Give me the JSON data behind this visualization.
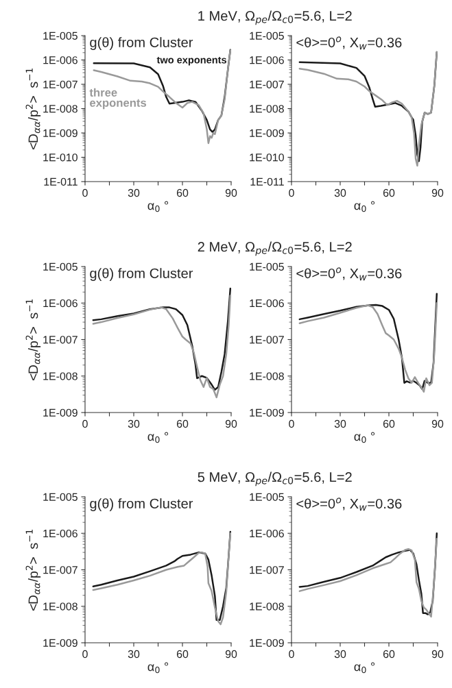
{
  "chart_data": [
    {
      "type": "line",
      "title": "1 MeV, Ω$_{pe}$/Ω$_{c0}$=5.6, L=2",
      "xlabel": "α$_{0}$ °",
      "ylabel": "<D$_{αα}$/p$^{2}$>  s$^{−1}$",
      "annotations": [
        "g(θ) from Cluster"
      ],
      "log": "y",
      "grid": false,
      "legend": false,
      "marker": "none",
      "line_style": "solid",
      "xlim": [
        0,
        90
      ],
      "xticks": [
        0,
        {
          "value": 15,
          "label": null
        },
        30,
        {
          "value": 45,
          "label": null
        },
        60,
        {
          "value": 75,
          "label": null
        },
        90
      ],
      "ylim": [
        1e-11,
        1e-05
      ],
      "yticks": [
        {
          "value": 1e-11,
          "label": "1E-011"
        },
        {
          "value": 1e-10,
          "label": "1E-010"
        },
        {
          "value": 1e-09,
          "label": "1E-009"
        },
        {
          "value": 1e-08,
          "label": "1E-008"
        },
        {
          "value": 1e-07,
          "label": "1E-007"
        },
        {
          "value": 1e-06,
          "label": "1E-006"
        },
        {
          "value": 1e-05,
          "label": "1E-005"
        }
      ],
      "series": [
        {
          "name": "two exponents",
          "color": "#1a1a1a",
          "x": [
            5.4,
            30,
            40,
            45,
            48,
            50,
            52,
            55,
            60,
            64,
            68,
            72,
            75,
            77,
            78.5,
            80,
            82,
            84,
            86,
            88,
            89.5
          ],
          "values": [
            7.4e-07,
            7.2e-07,
            5e-07,
            2.6e-07,
            8.7e-08,
            3e-08,
            1.6e-08,
            1.7e-08,
            1.9e-08,
            2.2e-08,
            1.9e-08,
            8.1e-09,
            3.4e-09,
            1.4e-09,
            1.1e-09,
            1.4e-09,
            3.4e-09,
            5.2e-09,
            3e-08,
            4e-07,
            2.6e-06
          ]
        },
        {
          "name": "three exponents",
          "color": "#999999",
          "x": [
            5.4,
            10,
            20,
            28,
            35,
            40,
            45,
            48,
            52,
            56,
            60,
            63,
            66,
            70,
            73,
            75,
            76,
            77,
            78,
            79,
            80,
            82,
            84,
            86,
            88,
            89.5
          ],
          "values": [
            3.8e-07,
            3.2e-07,
            2.1e-07,
            1.4e-07,
            1.3e-07,
            1.1e-07,
            7.9e-08,
            5.1e-08,
            3e-08,
            1.7e-08,
            1.1e-08,
            1.7e-08,
            1.9e-08,
            1.4e-08,
            6.5e-09,
            1.4e-09,
            3.8e-10,
            7.4e-10,
            6.3e-10,
            1e-09,
            8.9e-10,
            3.4e-09,
            5.2e-09,
            2.4e-08,
            4e-07,
            2.5e-06
          ]
        }
      ]
    },
    {
      "type": "line",
      "xlabel": "α$_{0}$ °",
      "annotations": [
        "<θ>=0$^{o}$, X$_{w}$=0.36"
      ],
      "log": "y",
      "grid": false,
      "legend": false,
      "marker": "none",
      "line_style": "solid",
      "xlim": [
        0,
        90
      ],
      "xticks": [
        0,
        {
          "value": 15,
          "label": null
        },
        30,
        {
          "value": 45,
          "label": null
        },
        60,
        {
          "value": 75,
          "label": null
        },
        90
      ],
      "ylim": [
        1e-11,
        1e-05
      ],
      "yticks": [
        {
          "value": 1e-11,
          "label": "1E-011"
        },
        {
          "value": 1e-10,
          "label": "1E-010"
        },
        {
          "value": 1e-09,
          "label": "1E-009"
        },
        {
          "value": 1e-08,
          "label": "1E-008"
        },
        {
          "value": 1e-07,
          "label": "1E-007"
        },
        {
          "value": 1e-06,
          "label": "1E-006"
        },
        {
          "value": 1e-05,
          "label": "1E-005"
        }
      ],
      "series": [
        {
          "color": "#1a1a1a",
          "x": [
            5,
            30,
            40,
            45,
            48,
            50,
            51.5,
            55,
            60,
            64,
            68,
            72,
            74,
            75,
            76.5,
            77.5,
            78.5,
            79.5,
            80.5,
            82,
            84,
            86,
            88,
            89.5
          ],
          "values": [
            8.1e-07,
            7.2e-07,
            4.7e-07,
            2.2e-07,
            7.2e-08,
            2.5e-08,
            1.2e-08,
            1.3e-08,
            1.5e-08,
            1.7e-08,
            1.3e-08,
            7.6e-09,
            4.4e-09,
            3.5e-09,
            7.9e-10,
            1.3e-10,
            6.9e-11,
            2.6e-10,
            2.8e-09,
            6.8e-09,
            6e-09,
            6.8e-09,
            8.9e-08,
            2.1e-06
          ]
        },
        {
          "color": "#999999",
          "x": [
            5,
            10,
            20,
            28,
            35,
            40,
            45,
            48,
            52,
            56,
            59,
            62,
            65,
            68,
            72,
            74,
            75.5,
            76.5,
            77.5,
            78.5,
            80,
            82,
            84,
            86,
            88,
            89.5
          ],
          "values": [
            4.4e-07,
            3.9e-07,
            2.7e-07,
            1.7e-07,
            1.6e-07,
            1.3e-07,
            8.1e-08,
            5.2e-08,
            3.4e-08,
            2.2e-08,
            1.4e-08,
            1.8e-08,
            2.1e-08,
            1.6e-08,
            7.6e-09,
            4.4e-09,
            9.5e-10,
            8.7e-11,
            4.5e-11,
            3.2e-10,
            2.2e-09,
            6.8e-09,
            6e-09,
            6.8e-09,
            8.9e-08,
            2.1e-06
          ]
        }
      ]
    },
    {
      "type": "line",
      "title": "2 MeV, Ω$_{pe}$/Ω$_{c0}$=5.6, L=2",
      "xlabel": "α$_{0}$ °",
      "ylabel": "<D$_{αα}$/p$^{2}$>  s$^{−1}$",
      "annotations": [
        "g(θ) from Cluster"
      ],
      "log": "y",
      "grid": false,
      "legend": false,
      "marker": "none",
      "line_style": "solid",
      "xlim": [
        0,
        90
      ],
      "xticks": [
        0,
        {
          "value": 15,
          "label": null
        },
        30,
        {
          "value": 45,
          "label": null
        },
        60,
        {
          "value": 75,
          "label": null
        },
        90
      ],
      "ylim": [
        1e-09,
        1e-05
      ],
      "yticks": [
        {
          "value": 1e-09,
          "label": "1E-009"
        },
        {
          "value": 1e-08,
          "label": "1E-008"
        },
        {
          "value": 1e-07,
          "label": "1E-007"
        },
        {
          "value": 1e-06,
          "label": "1E-006"
        },
        {
          "value": 1e-05,
          "label": "1E-005"
        }
      ],
      "series": [
        {
          "color": "#1a1a1a",
          "x": [
            5,
            10,
            20,
            30,
            40,
            48,
            52,
            56,
            60,
            63,
            66,
            68,
            69,
            72,
            75,
            78,
            80,
            82,
            84,
            86,
            88,
            89.5
          ],
          "values": [
            3.4e-07,
            3.6e-07,
            4.4e-07,
            5.2e-07,
            6.8e-07,
            7.6e-07,
            7.6e-07,
            6.8e-07,
            4.7e-07,
            2.5e-07,
            6.8e-08,
            2.1e-08,
            8.7e-09,
            1e-08,
            8.9e-09,
            5.8e-09,
            4.2e-09,
            5e-09,
            1.3e-08,
            4e-08,
            3.2e-07,
            2.5e-06
          ]
        },
        {
          "color": "#999999",
          "x": [
            5,
            10,
            20,
            30,
            40,
            47,
            50,
            54,
            57,
            60,
            62,
            65,
            67,
            69,
            71,
            73,
            75,
            77,
            79,
            81,
            83,
            85,
            87,
            88.5,
            89.5
          ],
          "values": [
            2.7e-07,
            3e-07,
            3.9e-07,
            4.9e-07,
            6.6e-07,
            7.6e-07,
            6.8e-07,
            3.8e-07,
            2.1e-07,
            1.2e-07,
            1e-07,
            7.8e-08,
            4.4e-08,
            1.8e-08,
            7.8e-09,
            5e-09,
            8.9e-09,
            5e-09,
            4.4e-09,
            2.6e-09,
            5.8e-09,
            1e-08,
            4e-08,
            2.5e-07,
            1.6e-06
          ]
        }
      ]
    },
    {
      "type": "line",
      "xlabel": "α$_{0}$ °",
      "annotations": [
        "<θ>=0$^{o}$, X$_{w}$=0.36"
      ],
      "log": "y",
      "grid": false,
      "legend": false,
      "marker": "none",
      "line_style": "solid",
      "xlim": [
        0,
        90
      ],
      "xticks": [
        0,
        {
          "value": 15,
          "label": null
        },
        30,
        {
          "value": 45,
          "label": null
        },
        60,
        {
          "value": 75,
          "label": null
        },
        90
      ],
      "ylim": [
        1e-09,
        1e-05
      ],
      "yticks": [
        {
          "value": 1e-09,
          "label": "1E-009"
        },
        {
          "value": 1e-08,
          "label": "1E-008"
        },
        {
          "value": 1e-07,
          "label": "1E-007"
        },
        {
          "value": 1e-06,
          "label": "1E-006"
        },
        {
          "value": 1e-05,
          "label": "1E-005"
        }
      ],
      "series": [
        {
          "color": "#1a1a1a",
          "x": [
            5,
            10,
            20,
            30,
            40,
            48,
            52,
            56,
            60,
            63,
            66,
            68,
            69.5,
            71,
            73,
            75,
            77,
            79,
            80.5,
            82,
            84,
            86,
            87.5,
            89.5
          ],
          "values": [
            3.6e-07,
            4e-07,
            5e-07,
            6.2e-07,
            7.9e-07,
            8.7e-07,
            8.9e-07,
            8.3e-07,
            6.5e-07,
            3.7e-07,
            1e-07,
            3.2e-08,
            6.5e-09,
            7.2e-09,
            6.6e-09,
            7.4e-09,
            6.5e-09,
            5.5e-09,
            4.4e-09,
            7.4e-09,
            6.5e-09,
            6.5e-09,
            2.3e-08,
            1.8e-06
          ]
        },
        {
          "color": "#999999",
          "x": [
            5,
            10,
            20,
            30,
            40,
            47,
            50,
            53,
            56,
            58,
            60,
            63,
            66,
            68,
            70,
            72,
            74,
            76,
            78,
            80,
            81.5,
            83,
            85,
            86.5,
            88,
            89.5
          ],
          "values": [
            2.8e-07,
            3.2e-07,
            4e-07,
            5.4e-07,
            7.4e-07,
            8.7e-07,
            7.8e-07,
            5e-07,
            2.4e-07,
            1.5e-07,
            1.3e-07,
            1e-07,
            5.6e-08,
            3.2e-08,
            1.5e-08,
            8.7e-09,
            6.5e-09,
            9.3e-09,
            6.5e-09,
            4.9e-09,
            3.7e-09,
            8.7e-09,
            5.6e-09,
            6.5e-09,
            4.2e-08,
            1e-06
          ]
        }
      ]
    },
    {
      "type": "line",
      "title": "5 MeV, Ω$_{pe}$/Ω$_{c0}$=5.6, L=2",
      "xlabel": "α$_{0}$ °",
      "ylabel": "<D$_{αα}$/p$^{2}$>  s$^{−1}$",
      "annotations": [
        "g(θ) from Cluster"
      ],
      "log": "y",
      "grid": false,
      "legend": false,
      "marker": "none",
      "line_style": "solid",
      "xlim": [
        0,
        90
      ],
      "xticks": [
        0,
        {
          "value": 15,
          "label": null
        },
        30,
        {
          "value": 45,
          "label": null
        },
        60,
        {
          "value": 75,
          "label": null
        },
        90
      ],
      "ylim": [
        1e-09,
        1e-05
      ],
      "yticks": [
        {
          "value": 1e-09,
          "label": "1E-009"
        },
        {
          "value": 1e-08,
          "label": "1E-008"
        },
        {
          "value": 1e-07,
          "label": "1E-007"
        },
        {
          "value": 1e-06,
          "label": "1E-006"
        },
        {
          "value": 1e-05,
          "label": "1E-005"
        }
      ],
      "series": [
        {
          "color": "#1a1a1a",
          "x": [
            5,
            10,
            20,
            30,
            40,
            50,
            55,
            57,
            60,
            65,
            70,
            74,
            76,
            78,
            80,
            81,
            83,
            85,
            87,
            88.5,
            89.5
          ],
          "values": [
            3.5e-08,
            3.9e-08,
            5.1e-08,
            6.5e-08,
            9.1e-08,
            1.3e-07,
            1.7e-07,
            2e-07,
            2.4e-07,
            2.6e-07,
            3e-07,
            2.8e-07,
            1.9e-07,
            6.9e-08,
            1.9e-08,
            4.2e-09,
            4.2e-09,
            1e-08,
            3.2e-08,
            2.5e-07,
            1.1e-06
          ]
        },
        {
          "color": "#999999",
          "x": [
            5,
            10,
            20,
            30,
            40,
            50,
            57,
            61,
            64,
            67,
            70,
            72,
            74,
            75.5,
            76,
            78,
            80,
            82,
            83.5,
            85,
            87,
            88.5,
            89.5
          ],
          "values": [
            2.8e-08,
            3.1e-08,
            3.9e-08,
            5.1e-08,
            6.9e-08,
            1e-07,
            1.2e-07,
            1.3e-07,
            1.7e-07,
            2.2e-07,
            2.9e-07,
            3e-07,
            2.8e-07,
            1.2e-07,
            4.3e-08,
            2.6e-08,
            9.3e-09,
            3.9e-09,
            3.2e-09,
            5e-09,
            2.5e-08,
            2.5e-07,
            1e-06
          ]
        }
      ]
    },
    {
      "type": "line",
      "xlabel": "α$_{0}$ °",
      "annotations": [
        "<θ>=0$^{o}$, X$_{w}$=0.36"
      ],
      "log": "y",
      "grid": false,
      "legend": false,
      "marker": "none",
      "line_style": "solid",
      "xlim": [
        0,
        90
      ],
      "xticks": [
        0,
        {
          "value": 15,
          "label": null
        },
        30,
        {
          "value": 45,
          "label": null
        },
        60,
        {
          "value": 75,
          "label": null
        },
        90
      ],
      "ylim": [
        1e-09,
        1e-05
      ],
      "yticks": [
        {
          "value": 1e-09,
          "label": "1E-009"
        },
        {
          "value": 1e-08,
          "label": "1E-008"
        },
        {
          "value": 1e-07,
          "label": "1E-007"
        },
        {
          "value": 1e-06,
          "label": "1E-006"
        },
        {
          "value": 1e-05,
          "label": "1E-005"
        }
      ],
      "series": [
        {
          "color": "#1a1a1a",
          "x": [
            5,
            10,
            20,
            30,
            40,
            50,
            55,
            58,
            62,
            66,
            70,
            73,
            75,
            77,
            78.5,
            80,
            81,
            82.5,
            84,
            85.5,
            87,
            88.5,
            89.5
          ],
          "values": [
            3.4e-08,
            3.6e-08,
            4.7e-08,
            6e-08,
            8.7e-08,
            1.3e-07,
            1.8e-07,
            2.2e-07,
            2.6e-07,
            3e-07,
            3.3e-07,
            3.5e-07,
            2.8e-07,
            1.4e-07,
            5.2e-08,
            2.2e-08,
            6.5e-09,
            6.5e-09,
            6e-09,
            6.9e-09,
            1.4e-08,
            1.3e-07,
            1e-06
          ]
        },
        {
          "color": "#999999",
          "x": [
            5,
            10,
            20,
            30,
            40,
            50,
            57,
            61,
            64,
            67,
            70,
            72,
            74,
            76,
            77,
            78.5,
            80,
            81.5,
            83,
            85,
            86,
            87.5,
            89.5
          ],
          "values": [
            2.6e-08,
            3e-08,
            3.8e-08,
            4.9e-08,
            7.1e-08,
            1.1e-07,
            1.4e-07,
            1.6e-07,
            2.1e-07,
            2.8e-07,
            3.5e-07,
            3.7e-07,
            3.4e-07,
            1.9e-07,
            4.6e-08,
            3e-08,
            1.4e-08,
            9.3e-09,
            8.1e-09,
            6e-09,
            5.2e-09,
            3e-08,
            7.1e-07
          ]
        }
      ]
    }
  ]
}
